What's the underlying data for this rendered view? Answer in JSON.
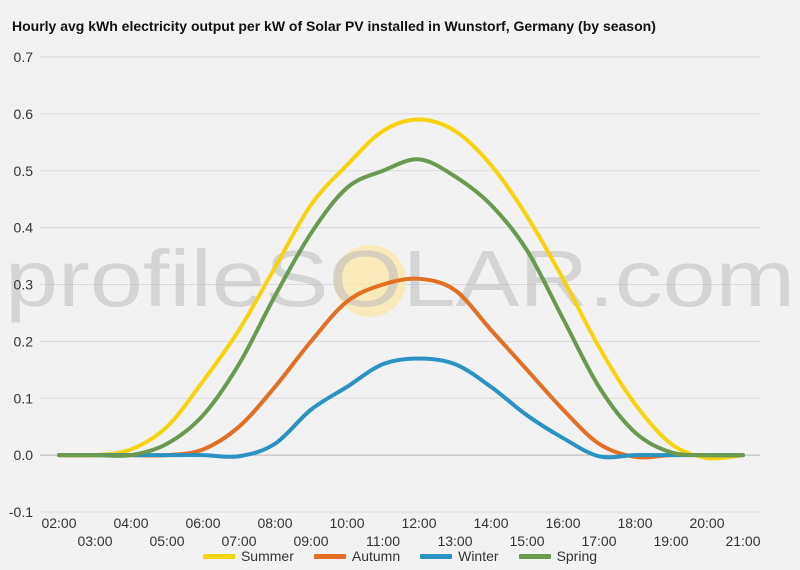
{
  "chart_data": {
    "type": "line",
    "title": "Hourly avg kWh electricity output per kW of Solar PV installed in Wunstorf, Germany (by season)",
    "xlabel": "",
    "ylabel": "",
    "ylim": [
      -0.1,
      0.7
    ],
    "yticks": [
      "-0.1",
      "0.0",
      "0.1",
      "0.2",
      "0.3",
      "0.4",
      "0.5",
      "0.6",
      "0.7"
    ],
    "x": [
      "02:00",
      "03:00",
      "04:00",
      "05:00",
      "06:00",
      "07:00",
      "08:00",
      "09:00",
      "10:00",
      "11:00",
      "12:00",
      "13:00",
      "14:00",
      "15:00",
      "16:00",
      "17:00",
      "18:00",
      "19:00",
      "20:00",
      "21:00"
    ],
    "grid": true,
    "legend_position": "bottom",
    "watermark": "profileSOLAR.com",
    "series": [
      {
        "name": "Summer",
        "color": "#f5d40f",
        "values": [
          0.0,
          0.0,
          0.01,
          0.05,
          0.13,
          0.22,
          0.33,
          0.44,
          0.51,
          0.57,
          0.59,
          0.57,
          0.51,
          0.42,
          0.31,
          0.19,
          0.09,
          0.02,
          -0.005,
          0.0
        ]
      },
      {
        "name": "Autumn",
        "color": "#e36f22",
        "values": [
          0.0,
          0.0,
          0.0,
          0.0,
          0.01,
          0.05,
          0.12,
          0.2,
          0.27,
          0.3,
          0.31,
          0.29,
          0.22,
          0.15,
          0.08,
          0.02,
          -0.003,
          0.0,
          0.0,
          0.0
        ]
      },
      {
        "name": "Winter",
        "color": "#2a93c1",
        "values": [
          0.0,
          0.0,
          0.0,
          0.0,
          0.0,
          -0.002,
          0.02,
          0.08,
          0.12,
          0.16,
          0.17,
          0.16,
          0.12,
          0.07,
          0.03,
          -0.002,
          0.0,
          0.0,
          0.0,
          0.0
        ]
      },
      {
        "name": "Spring",
        "color": "#6a9a51",
        "values": [
          0.0,
          0.0,
          0.0,
          0.02,
          0.07,
          0.16,
          0.28,
          0.39,
          0.47,
          0.5,
          0.52,
          0.49,
          0.44,
          0.36,
          0.24,
          0.12,
          0.04,
          0.005,
          0.0,
          0.0
        ]
      }
    ]
  }
}
